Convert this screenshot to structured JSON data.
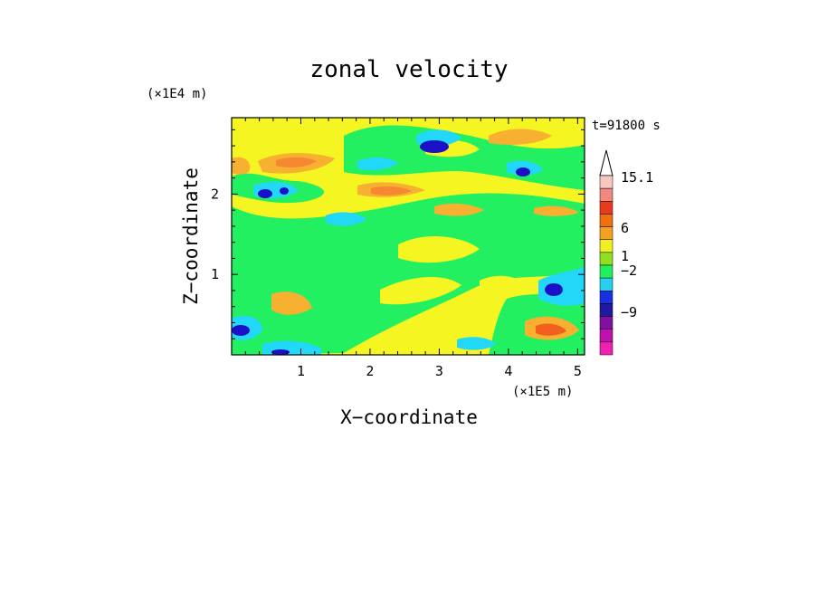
{
  "chart_data": {
    "type": "heatmap",
    "title": "zonal velocity",
    "xlabel": "X−coordinate",
    "ylabel": "Z−coordinate",
    "x_scale_label": "(×1E5 m)",
    "y_scale_label": "(×1E4 m)",
    "time_label": "t=91800 s",
    "x_ticks": [
      "1",
      "2",
      "3",
      "4",
      "5"
    ],
    "y_ticks": [
      "1",
      "2"
    ],
    "xlim": [
      0,
      5.1
    ],
    "ylim": [
      0,
      2.95
    ],
    "colorbar": {
      "labels": [
        "15.1",
        "6",
        "1",
        "−2",
        "−9"
      ],
      "colors_top_to_bottom": [
        "#f8c8c0",
        "#f08a80",
        "#e83a1c",
        "#f07010",
        "#f5a020",
        "#f0f020",
        "#90e020",
        "#20f060",
        "#28d0f0",
        "#1830e0",
        "#2018a0",
        "#8010a0",
        "#c010b0",
        "#f020b0"
      ],
      "extend_max": true
    },
    "field_palette": {
      "strong_neg": "#1a10c8",
      "neg": "#22d8f8",
      "weak_neg": "#22f060",
      "zero": "#f5f522",
      "weak_pos": "#f8b030",
      "pos": "#f58830",
      "strong_pos": "#f26020"
    }
  }
}
